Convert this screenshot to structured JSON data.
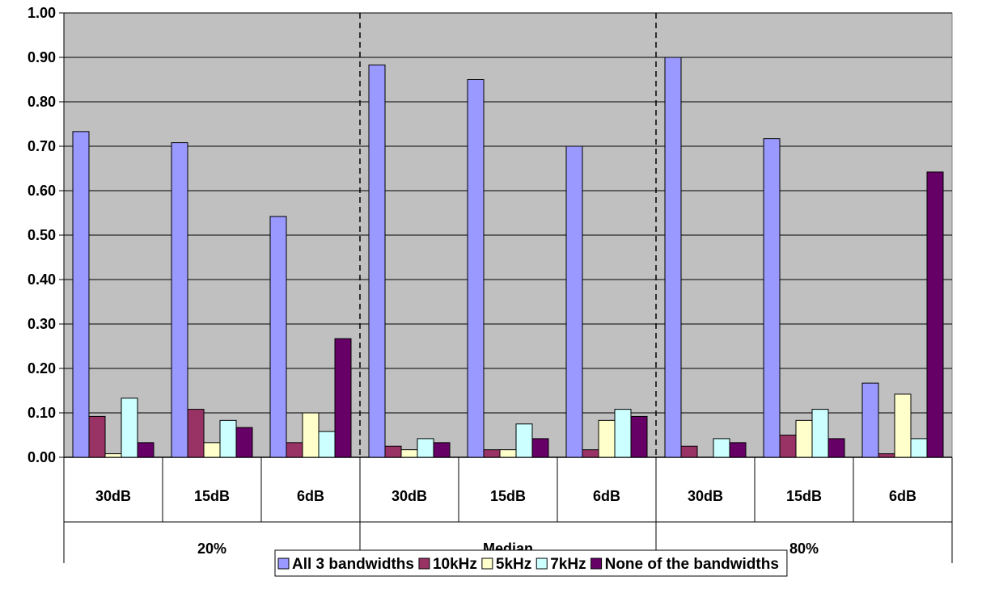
{
  "chart_data": {
    "type": "bar",
    "ylim": [
      0,
      1.0
    ],
    "yticks": [
      "0.00",
      "0.10",
      "0.20",
      "0.30",
      "0.40",
      "0.50",
      "0.60",
      "0.70",
      "0.80",
      "0.90",
      "1.00"
    ],
    "grid": true,
    "plot_background": "#c0c0c0",
    "legend_position": "bottom",
    "groups": [
      {
        "label": "20%",
        "categories": [
          "30dB",
          "15dB",
          "6dB"
        ]
      },
      {
        "label": "Median",
        "categories": [
          "30dB",
          "15dB",
          "6dB"
        ]
      },
      {
        "label": "80%",
        "categories": [
          "30dB",
          "15dB",
          "6dB"
        ]
      }
    ],
    "series": [
      {
        "name": "All 3 bandwidths",
        "color": "#9999ff",
        "values": [
          0.733,
          0.708,
          0.542,
          0.883,
          0.85,
          0.7,
          0.9,
          0.717,
          0.167
        ]
      },
      {
        "name": "10kHz",
        "color": "#993366",
        "values": [
          0.092,
          0.108,
          0.033,
          0.025,
          0.017,
          0.017,
          0.025,
          0.05,
          0.008
        ]
      },
      {
        "name": "5kHz",
        "color": "#ffffcc",
        "values": [
          0.008,
          0.033,
          0.1,
          0.017,
          0.017,
          0.083,
          0.0,
          0.083,
          0.142
        ]
      },
      {
        "name": "7kHz",
        "color": "#ccffff",
        "values": [
          0.133,
          0.083,
          0.058,
          0.042,
          0.075,
          0.108,
          0.042,
          0.108,
          0.042
        ]
      },
      {
        "name": "None of the bandwidths",
        "color": "#660066",
        "values": [
          0.033,
          0.067,
          0.267,
          0.033,
          0.042,
          0.092,
          0.033,
          0.042,
          0.642
        ]
      }
    ]
  }
}
